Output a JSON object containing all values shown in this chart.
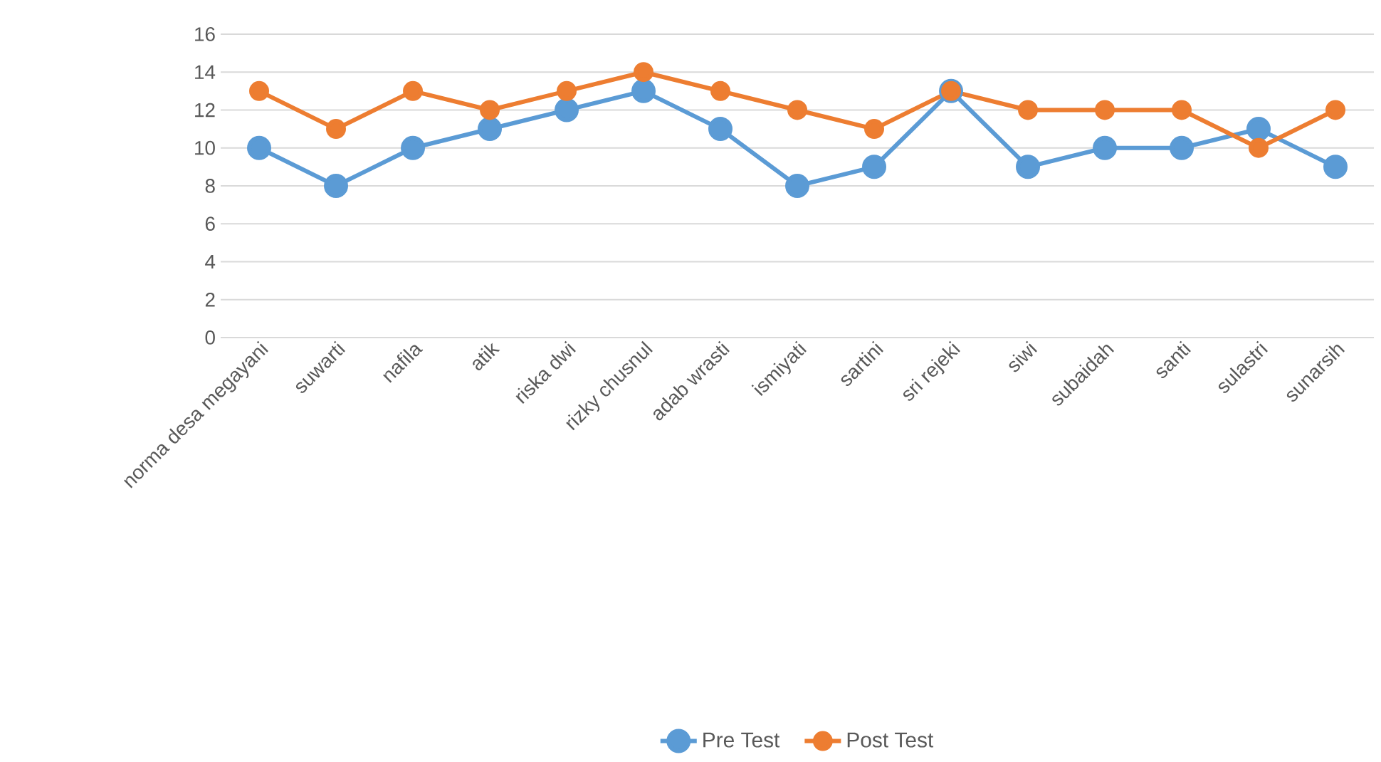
{
  "chart_data": {
    "type": "line",
    "categories": [
      "norma desa megayani",
      "suwarti",
      "nafila",
      "atik",
      "riska dwi",
      "rizky chusnul",
      "adab wrasti",
      "ismiyati",
      "sartini",
      "sri rejeki",
      "siwi",
      "subaidah",
      "santi",
      "sulastri",
      "sunarsih"
    ],
    "series": [
      {
        "name": "Pre Test",
        "color": "#5b9bd5",
        "values": [
          10,
          8,
          10,
          11,
          12,
          13,
          11,
          8,
          9,
          13,
          9,
          10,
          10,
          11,
          9
        ]
      },
      {
        "name": "Post Test",
        "color": "#ed7d31",
        "values": [
          13,
          11,
          13,
          12,
          13,
          14,
          13,
          12,
          11,
          13,
          12,
          12,
          12,
          10,
          12
        ]
      }
    ],
    "ylim": [
      0,
      16
    ],
    "yticks": [
      0,
      2,
      4,
      6,
      8,
      10,
      12,
      14,
      16
    ],
    "grid": "y",
    "legend": "bottom",
    "marker": "circle",
    "line_style": "solid"
  }
}
